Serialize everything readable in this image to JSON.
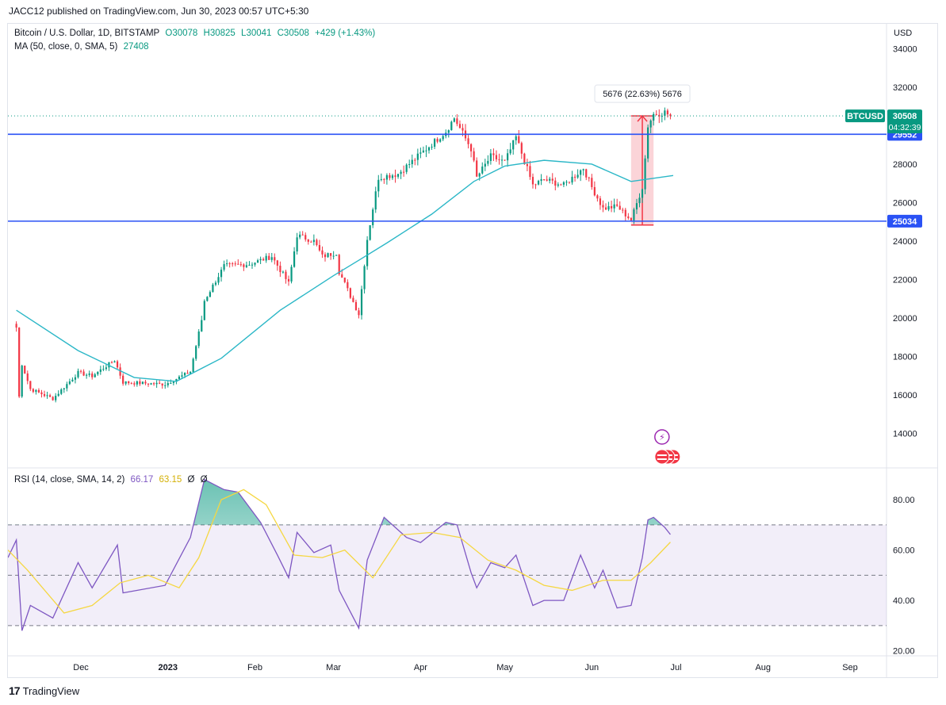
{
  "publisher_line": "JACC12 published on TradingView.com, Jun 30, 2023 00:57 UTC+5:30",
  "footer": {
    "brand": "TradingView"
  },
  "legend": {
    "symbol": "Bitcoin / U.S. Dollar, 1D, BITSTAMP",
    "open": "O30078",
    "high": "H30825",
    "low": "L30041",
    "close": "C30508",
    "change": "+429 (+1.43%)",
    "ma_label": "MA (50, close, 0, SMA, 5)",
    "ma_value": "27408",
    "rsi_label": "RSI (14, close, SMA, 14, 2)",
    "rsi_value": "66.17",
    "rsi_ma_value": "63.15",
    "rsi_extra1": "Ø",
    "rsi_extra2": "Ø"
  },
  "currency": "USD",
  "colors": {
    "up": "#089981",
    "down": "#f23645",
    "ma": "#2bb7c7",
    "level": "#2a52f5",
    "rsi": "#7e57c2",
    "rsi_ma": "#f5d742",
    "measure": "#f7b1b8"
  },
  "chart_data": [
    {
      "type": "candlestick",
      "title": "Bitcoin / U.S. Dollar, 1D, BITSTAMP",
      "x_tick_labels": [
        "Dec",
        "2023",
        "Feb",
        "Mar",
        "Apr",
        "May",
        "Jun",
        "Jul",
        "Aug",
        "Sep"
      ],
      "y_tick_labels": [
        "14000",
        "16000",
        "18000",
        "20000",
        "22000",
        "24000",
        "26000",
        "28000",
        "30000",
        "32000",
        "34000"
      ],
      "ylim": [
        12200,
        35300
      ],
      "horizontal_levels": [
        29552,
        25034
      ],
      "last_price": {
        "label": "BTCUSD",
        "value": "30508",
        "countdown": "04:32:39"
      },
      "measure_annotation": {
        "text": "5676 (22.63%) 5676",
        "from": 24832,
        "to": 30508
      },
      "close_path": [
        [
          "2022-11-08",
          19500
        ],
        [
          "2022-11-09",
          15900
        ],
        [
          "2022-11-10",
          17600
        ],
        [
          "2022-11-13",
          16300
        ],
        [
          "2022-11-21",
          15800
        ],
        [
          "2022-11-30",
          17150
        ],
        [
          "2022-12-05",
          16980
        ],
        [
          "2022-12-13",
          17800
        ],
        [
          "2022-12-16",
          16650
        ],
        [
          "2022-12-31",
          16550
        ],
        [
          "2023-01-09",
          17200
        ],
        [
          "2023-01-13",
          19900
        ],
        [
          "2023-01-14",
          20900
        ],
        [
          "2023-01-21",
          22700
        ],
        [
          "2023-01-30",
          22800
        ],
        [
          "2023-02-07",
          23200
        ],
        [
          "2023-02-13",
          21800
        ],
        [
          "2023-02-16",
          24300
        ],
        [
          "2023-02-22",
          24000
        ],
        [
          "2023-02-25",
          23200
        ],
        [
          "2023-03-02",
          23400
        ],
        [
          "2023-03-03",
          22400
        ],
        [
          "2023-03-10",
          20200
        ],
        [
          "2023-03-13",
          24100
        ],
        [
          "2023-03-17",
          27300
        ],
        [
          "2023-03-24",
          27500
        ],
        [
          "2023-03-31",
          28400
        ],
        [
          "2023-04-10",
          29700
        ],
        [
          "2023-04-13",
          30400
        ],
        [
          "2023-04-19",
          28800
        ],
        [
          "2023-04-21",
          27300
        ],
        [
          "2023-04-26",
          28400
        ],
        [
          "2023-05-01",
          28100
        ],
        [
          "2023-05-05",
          29400
        ],
        [
          "2023-05-11",
          26900
        ],
        [
          "2023-05-15",
          27200
        ],
        [
          "2023-05-22",
          26900
        ],
        [
          "2023-05-29",
          27800
        ],
        [
          "2023-06-01",
          26800
        ],
        [
          "2023-06-05",
          25700
        ],
        [
          "2023-06-10",
          25800
        ],
        [
          "2023-06-15",
          25100
        ],
        [
          "2023-06-19",
          26800
        ],
        [
          "2023-06-20",
          28300
        ],
        [
          "2023-06-21",
          30000
        ],
        [
          "2023-06-23",
          30600
        ],
        [
          "2023-06-27",
          30700
        ],
        [
          "2023-06-29",
          30508
        ]
      ],
      "moving_average": {
        "name": "MA (50, close, 0, SMA, 5)",
        "points": [
          [
            "2022-11-08",
            20400
          ],
          [
            "2022-11-30",
            18300
          ],
          [
            "2022-12-20",
            16900
          ],
          [
            "2023-01-04",
            16700
          ],
          [
            "2023-01-20",
            17900
          ],
          [
            "2023-02-10",
            20400
          ],
          [
            "2023-03-01",
            22200
          ],
          [
            "2023-03-10",
            23000
          ],
          [
            "2023-03-20",
            23900
          ],
          [
            "2023-04-05",
            25400
          ],
          [
            "2023-04-20",
            27100
          ],
          [
            "2023-05-01",
            27900
          ],
          [
            "2023-05-15",
            28200
          ],
          [
            "2023-06-01",
            28000
          ],
          [
            "2023-06-15",
            27100
          ],
          [
            "2023-06-30",
            27408
          ]
        ]
      }
    },
    {
      "type": "line",
      "title": "RSI (14, close, SMA, 14, 2)",
      "y_tick_labels": [
        "20.00",
        "40.00",
        "60.00",
        "80.00"
      ],
      "ylim": [
        18,
        92
      ],
      "bands": [
        30,
        50,
        70
      ],
      "series": [
        {
          "name": "RSI",
          "points": [
            [
              "2022-11-05",
              57
            ],
            [
              "2022-11-08",
              64
            ],
            [
              "2022-11-10",
              28
            ],
            [
              "2022-11-13",
              38
            ],
            [
              "2022-11-21",
              33
            ],
            [
              "2022-11-30",
              55
            ],
            [
              "2022-12-05",
              45
            ],
            [
              "2022-12-14",
              62
            ],
            [
              "2022-12-16",
              43
            ],
            [
              "2022-12-31",
              46
            ],
            [
              "2023-01-09",
              65
            ],
            [
              "2023-01-14",
              88
            ],
            [
              "2023-01-21",
              84
            ],
            [
              "2023-01-26",
              83
            ],
            [
              "2023-02-03",
              71
            ],
            [
              "2023-02-09",
              58
            ],
            [
              "2023-02-13",
              49
            ],
            [
              "2023-02-16",
              67
            ],
            [
              "2023-02-22",
              59
            ],
            [
              "2023-02-28",
              62
            ],
            [
              "2023-03-03",
              44
            ],
            [
              "2023-03-10",
              29
            ],
            [
              "2023-03-13",
              56
            ],
            [
              "2023-03-19",
              73
            ],
            [
              "2023-03-27",
              65
            ],
            [
              "2023-04-01",
              63
            ],
            [
              "2023-04-10",
              71
            ],
            [
              "2023-04-14",
              70
            ],
            [
              "2023-04-19",
              51
            ],
            [
              "2023-04-21",
              45
            ],
            [
              "2023-04-26",
              55
            ],
            [
              "2023-05-01",
              53
            ],
            [
              "2023-05-05",
              58
            ],
            [
              "2023-05-11",
              38
            ],
            [
              "2023-05-15",
              40
            ],
            [
              "2023-05-22",
              40
            ],
            [
              "2023-05-28",
              58
            ],
            [
              "2023-06-02",
              45
            ],
            [
              "2023-06-05",
              52
            ],
            [
              "2023-06-10",
              37
            ],
            [
              "2023-06-15",
              38
            ],
            [
              "2023-06-19",
              57
            ],
            [
              "2023-06-21",
              72
            ],
            [
              "2023-06-23",
              73
            ],
            [
              "2023-06-27",
              69
            ],
            [
              "2023-06-29",
              66.17
            ]
          ]
        },
        {
          "name": "RSI-based MA",
          "points": [
            [
              "2022-11-05",
              60
            ],
            [
              "2022-11-12",
              52
            ],
            [
              "2022-11-25",
              35
            ],
            [
              "2022-12-05",
              38
            ],
            [
              "2022-12-15",
              47
            ],
            [
              "2022-12-25",
              50
            ],
            [
              "2023-01-05",
              45
            ],
            [
              "2023-01-12",
              57
            ],
            [
              "2023-01-20",
              80
            ],
            [
              "2023-01-28",
              84
            ],
            [
              "2023-02-05",
              78
            ],
            [
              "2023-02-15",
              58
            ],
            [
              "2023-02-25",
              57
            ],
            [
              "2023-03-05",
              60
            ],
            [
              "2023-03-15",
              49
            ],
            [
              "2023-03-25",
              66
            ],
            [
              "2023-04-05",
              67
            ],
            [
              "2023-04-15",
              65
            ],
            [
              "2023-04-25",
              56
            ],
            [
              "2023-05-05",
              52
            ],
            [
              "2023-05-15",
              46
            ],
            [
              "2023-05-25",
              44
            ],
            [
              "2023-06-05",
              48
            ],
            [
              "2023-06-15",
              48
            ],
            [
              "2023-06-22",
              55
            ],
            [
              "2023-06-29",
              63.15
            ]
          ]
        }
      ]
    }
  ]
}
